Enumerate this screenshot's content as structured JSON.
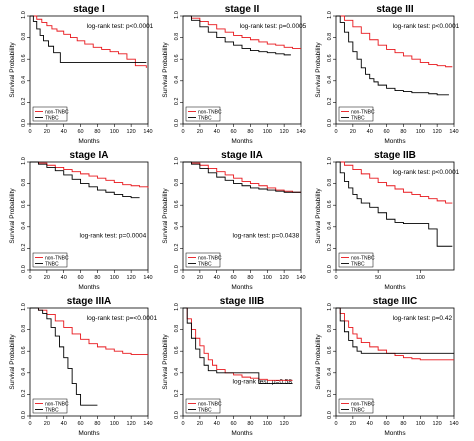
{
  "chart_data": [
    {
      "type": "line",
      "title": "stage I",
      "xlabel": "Months",
      "ylabel": "Survival Probability",
      "xlim": [
        0,
        140
      ],
      "ylim": [
        0,
        1
      ],
      "xticks": [
        0,
        20,
        40,
        60,
        80,
        100,
        120,
        140
      ],
      "yticks": [
        0.0,
        0.2,
        0.4,
        0.6,
        0.8,
        1.0
      ],
      "annotation": "log-rank test: p<0.0001",
      "legend": "bottom-left",
      "series": [
        {
          "name": "non-TNBC",
          "color": "#e8161b",
          "x": [
            0,
            8,
            14,
            20,
            26,
            32,
            40,
            48,
            56,
            65,
            75,
            85,
            95,
            105,
            115,
            125,
            138
          ],
          "y": [
            1.0,
            0.97,
            0.94,
            0.91,
            0.88,
            0.86,
            0.83,
            0.8,
            0.77,
            0.74,
            0.71,
            0.69,
            0.67,
            0.65,
            0.6,
            0.54,
            0.52
          ]
        },
        {
          "name": "TNBC",
          "color": "#000000",
          "x": [
            0,
            4,
            8,
            12,
            16,
            22,
            28,
            36,
            138
          ],
          "y": [
            1.0,
            0.95,
            0.88,
            0.82,
            0.77,
            0.72,
            0.66,
            0.57,
            0.57
          ]
        }
      ]
    },
    {
      "type": "line",
      "title": "stage II",
      "xlabel": "Months",
      "ylabel": "Survival Probability",
      "xlim": [
        0,
        140
      ],
      "ylim": [
        0,
        1
      ],
      "xticks": [
        0,
        20,
        40,
        60,
        80,
        100,
        120,
        140
      ],
      "yticks": [
        0.0,
        0.2,
        0.4,
        0.6,
        0.8,
        1.0
      ],
      "annotation": "log-rank test: p=0.0005",
      "legend": "bottom-left",
      "series": [
        {
          "name": "non-TNBC",
          "color": "#e8161b",
          "x": [
            0,
            10,
            20,
            30,
            40,
            50,
            60,
            70,
            80,
            90,
            100,
            110,
            120,
            130,
            140
          ],
          "y": [
            1.0,
            0.98,
            0.95,
            0.92,
            0.88,
            0.85,
            0.82,
            0.8,
            0.78,
            0.76,
            0.74,
            0.73,
            0.71,
            0.7,
            0.7
          ]
        },
        {
          "name": "TNBC",
          "color": "#000000",
          "x": [
            0,
            10,
            20,
            30,
            40,
            50,
            60,
            70,
            80,
            90,
            100,
            110,
            120,
            128
          ],
          "y": [
            1.0,
            0.96,
            0.9,
            0.85,
            0.8,
            0.76,
            0.73,
            0.7,
            0.68,
            0.67,
            0.66,
            0.65,
            0.64,
            0.64
          ]
        }
      ]
    },
    {
      "type": "line",
      "title": "stage III",
      "xlabel": "Months",
      "ylabel": "Survival Probability",
      "xlim": [
        0,
        140
      ],
      "ylim": [
        0,
        1
      ],
      "xticks": [
        0,
        20,
        40,
        60,
        80,
        100,
        120,
        140
      ],
      "yticks": [
        0.0,
        0.2,
        0.4,
        0.6,
        0.8,
        1.0
      ],
      "annotation": "log-rank test: p<0.0001",
      "legend": "bottom-left",
      "series": [
        {
          "name": "non-TNBC",
          "color": "#e8161b",
          "x": [
            0,
            10,
            20,
            30,
            40,
            50,
            60,
            70,
            80,
            90,
            100,
            110,
            120,
            130,
            138
          ],
          "y": [
            1.0,
            0.96,
            0.9,
            0.84,
            0.78,
            0.73,
            0.69,
            0.66,
            0.63,
            0.6,
            0.57,
            0.55,
            0.54,
            0.53,
            0.53
          ]
        },
        {
          "name": "TNBC",
          "color": "#000000",
          "x": [
            0,
            5,
            10,
            15,
            20,
            25,
            30,
            35,
            40,
            45,
            50,
            60,
            70,
            80,
            90,
            110,
            120,
            134
          ],
          "y": [
            1.0,
            0.94,
            0.85,
            0.76,
            0.67,
            0.6,
            0.52,
            0.46,
            0.42,
            0.39,
            0.36,
            0.33,
            0.31,
            0.3,
            0.29,
            0.28,
            0.27,
            0.27
          ]
        }
      ]
    },
    {
      "type": "line",
      "title": "stage IA",
      "xlabel": "Months",
      "ylabel": "Survival Probability",
      "xlim": [
        0,
        140
      ],
      "ylim": [
        0,
        1
      ],
      "xticks": [
        0,
        20,
        40,
        60,
        80,
        100,
        120,
        140
      ],
      "yticks": [
        0.0,
        0.2,
        0.4,
        0.6,
        0.8,
        1.0
      ],
      "annotation": "log-rank test: p=0.0004",
      "legend": "bottom-left",
      "series": [
        {
          "name": "non-TNBC",
          "color": "#e8161b",
          "x": [
            0,
            10,
            20,
            30,
            40,
            50,
            60,
            70,
            80,
            90,
            100,
            110,
            120,
            130,
            140
          ],
          "y": [
            1.0,
            0.99,
            0.97,
            0.95,
            0.93,
            0.91,
            0.89,
            0.87,
            0.85,
            0.83,
            0.81,
            0.79,
            0.78,
            0.77,
            0.76
          ]
        },
        {
          "name": "TNBC",
          "color": "#000000",
          "x": [
            0,
            10,
            20,
            30,
            40,
            50,
            60,
            70,
            80,
            90,
            100,
            110,
            120,
            130
          ],
          "y": [
            1.0,
            0.98,
            0.95,
            0.92,
            0.88,
            0.84,
            0.8,
            0.77,
            0.74,
            0.72,
            0.7,
            0.68,
            0.67,
            0.67
          ]
        }
      ]
    },
    {
      "type": "line",
      "title": "stage IIA",
      "xlabel": "Months",
      "ylabel": "Survival Probability",
      "xlim": [
        0,
        140
      ],
      "ylim": [
        0,
        1
      ],
      "xticks": [
        0,
        20,
        40,
        60,
        80,
        100,
        120,
        140
      ],
      "yticks": [
        0.0,
        0.2,
        0.4,
        0.6,
        0.8,
        1.0
      ],
      "annotation": "log-rank test: p=0.0438",
      "legend": "bottom-left",
      "series": [
        {
          "name": "non-TNBC",
          "color": "#e8161b",
          "x": [
            0,
            10,
            20,
            30,
            40,
            50,
            60,
            70,
            80,
            90,
            100,
            110,
            120,
            130,
            140
          ],
          "y": [
            1.0,
            0.99,
            0.97,
            0.94,
            0.91,
            0.88,
            0.85,
            0.82,
            0.8,
            0.78,
            0.76,
            0.74,
            0.73,
            0.72,
            0.72
          ]
        },
        {
          "name": "TNBC",
          "color": "#000000",
          "x": [
            0,
            10,
            20,
            30,
            40,
            50,
            60,
            70,
            80,
            90,
            100,
            110,
            120,
            130,
            140
          ],
          "y": [
            1.0,
            0.98,
            0.94,
            0.9,
            0.86,
            0.83,
            0.8,
            0.78,
            0.76,
            0.75,
            0.74,
            0.73,
            0.72,
            0.72,
            0.72
          ]
        }
      ]
    },
    {
      "type": "line",
      "title": "stage IIB",
      "xlabel": "Months",
      "ylabel": "Survival Probability",
      "xlim": [
        0,
        140
      ],
      "ylim": [
        0,
        1
      ],
      "xticks": [
        0,
        50,
        100
      ],
      "yticks": [
        0.0,
        0.2,
        0.4,
        0.6,
        0.8,
        1.0
      ],
      "annotation": "log-rank test: p<0.0001",
      "legend": "bottom-left",
      "series": [
        {
          "name": "non-TNBC",
          "color": "#e8161b",
          "x": [
            0,
            10,
            20,
            30,
            40,
            50,
            60,
            70,
            80,
            90,
            100,
            110,
            120,
            130,
            138
          ],
          "y": [
            1.0,
            0.97,
            0.93,
            0.89,
            0.85,
            0.81,
            0.78,
            0.75,
            0.72,
            0.7,
            0.68,
            0.66,
            0.64,
            0.62,
            0.62
          ]
        },
        {
          "name": "TNBC",
          "color": "#000000",
          "x": [
            0,
            5,
            10,
            15,
            20,
            25,
            30,
            40,
            50,
            60,
            70,
            80,
            90,
            100,
            110,
            120,
            138
          ],
          "y": [
            1.0,
            0.9,
            0.82,
            0.76,
            0.7,
            0.66,
            0.62,
            0.58,
            0.53,
            0.47,
            0.44,
            0.43,
            0.43,
            0.43,
            0.38,
            0.22,
            0.22
          ]
        }
      ]
    },
    {
      "type": "line",
      "title": "stage IIIA",
      "xlabel": "Months",
      "ylabel": "Survival Probability",
      "xlim": [
        0,
        140
      ],
      "ylim": [
        0,
        1
      ],
      "xticks": [
        0,
        20,
        40,
        60,
        80,
        100,
        120,
        140
      ],
      "yticks": [
        0.0,
        0.2,
        0.4,
        0.6,
        0.8,
        1.0
      ],
      "annotation": "log-rank test: p=<0.0001",
      "legend": "bottom-left",
      "series": [
        {
          "name": "non-TNBC",
          "color": "#e8161b",
          "x": [
            0,
            10,
            20,
            30,
            40,
            50,
            60,
            70,
            80,
            90,
            100,
            110,
            120,
            130,
            140
          ],
          "y": [
            1.0,
            0.98,
            0.94,
            0.88,
            0.82,
            0.76,
            0.71,
            0.67,
            0.64,
            0.62,
            0.6,
            0.58,
            0.57,
            0.57,
            0.57
          ]
        },
        {
          "name": "TNBC",
          "color": "#000000",
          "x": [
            0,
            10,
            15,
            20,
            25,
            30,
            35,
            40,
            45,
            50,
            55,
            60,
            70,
            80
          ],
          "y": [
            1.0,
            0.98,
            0.95,
            0.9,
            0.82,
            0.74,
            0.64,
            0.54,
            0.44,
            0.3,
            0.2,
            0.1,
            0.1,
            0.1
          ]
        }
      ]
    },
    {
      "type": "line",
      "title": "stage IIIB",
      "xlabel": "Months",
      "ylabel": "Survival Probability",
      "xlim": [
        0,
        140
      ],
      "ylim": [
        0,
        1
      ],
      "xticks": [
        0,
        20,
        40,
        60,
        80,
        100,
        120
      ],
      "yticks": [
        0.0,
        0.2,
        0.4,
        0.6,
        0.8,
        1.0
      ],
      "annotation": "log-rank test: p=0.58",
      "legend": "bottom-left",
      "series": [
        {
          "name": "non-TNBC",
          "color": "#e8161b",
          "x": [
            0,
            5,
            10,
            15,
            20,
            25,
            30,
            35,
            40,
            50,
            60,
            70,
            80,
            90,
            100,
            110,
            120,
            130
          ],
          "y": [
            1.0,
            0.9,
            0.8,
            0.72,
            0.65,
            0.58,
            0.52,
            0.47,
            0.43,
            0.4,
            0.38,
            0.36,
            0.35,
            0.34,
            0.33,
            0.33,
            0.33,
            0.33
          ]
        },
        {
          "name": "TNBC",
          "color": "#000000",
          "x": [
            0,
            5,
            10,
            15,
            20,
            25,
            30,
            40,
            50,
            60,
            70,
            80,
            90,
            100,
            110,
            120,
            130
          ],
          "y": [
            1.0,
            0.86,
            0.72,
            0.62,
            0.54,
            0.47,
            0.42,
            0.4,
            0.4,
            0.4,
            0.4,
            0.4,
            0.3,
            0.3,
            0.3,
            0.3,
            0.3
          ]
        }
      ]
    },
    {
      "type": "line",
      "title": "stage IIIC",
      "xlabel": "Months",
      "ylabel": "Survival Probability",
      "xlim": [
        0,
        140
      ],
      "ylim": [
        0,
        1
      ],
      "xticks": [
        0,
        20,
        40,
        60,
        80,
        100,
        120,
        140
      ],
      "yticks": [
        0.0,
        0.2,
        0.4,
        0.6,
        0.8,
        1.0
      ],
      "annotation": "log-rank test: p=0.42",
      "legend": "bottom-left",
      "series": [
        {
          "name": "non-TNBC",
          "color": "#e8161b",
          "x": [
            0,
            5,
            10,
            15,
            20,
            25,
            30,
            40,
            50,
            60,
            70,
            80,
            90,
            100,
            110,
            120,
            130,
            140
          ],
          "y": [
            1.0,
            0.95,
            0.88,
            0.82,
            0.76,
            0.72,
            0.68,
            0.64,
            0.61,
            0.58,
            0.56,
            0.54,
            0.53,
            0.52,
            0.52,
            0.52,
            0.52,
            0.52
          ]
        },
        {
          "name": "TNBC",
          "color": "#000000",
          "x": [
            0,
            5,
            10,
            15,
            20,
            25,
            30,
            40,
            60,
            80,
            100,
            120,
            140
          ],
          "y": [
            1.0,
            0.88,
            0.78,
            0.7,
            0.64,
            0.6,
            0.58,
            0.58,
            0.58,
            0.58,
            0.58,
            0.58,
            0.58
          ]
        }
      ]
    }
  ]
}
